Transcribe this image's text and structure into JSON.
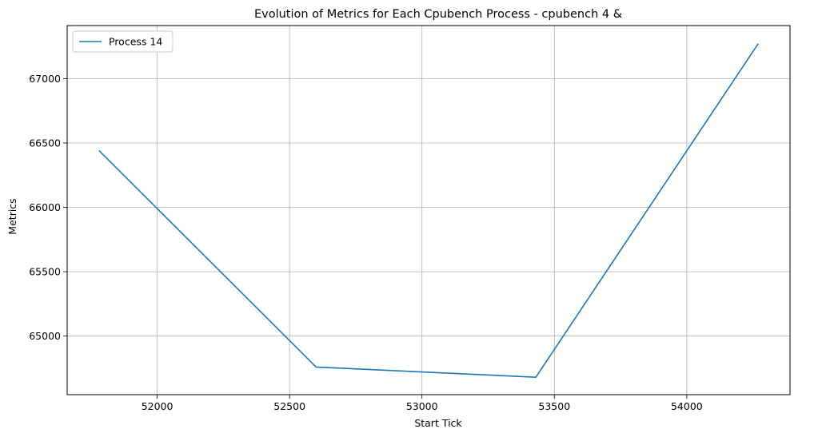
{
  "chart_data": {
    "type": "line",
    "title": "Evolution of Metrics for Each Cpubench Process - cpubench 4 &",
    "xlabel": "Start Tick",
    "ylabel": "Metrics",
    "xlim": [
      51660,
      54390
    ],
    "ylim": [
      64545,
      67412
    ],
    "xticks": [
      52000,
      52500,
      53000,
      53500,
      54000
    ],
    "yticks": [
      65000,
      65500,
      66000,
      66500,
      67000
    ],
    "grid": true,
    "legend_position": "top-left",
    "series": [
      {
        "name": "Process 14",
        "color": "#1f77b4",
        "x": [
          51780,
          52600,
          53430,
          54270
        ],
        "y": [
          66442,
          64760,
          64680,
          67272
        ]
      }
    ]
  }
}
